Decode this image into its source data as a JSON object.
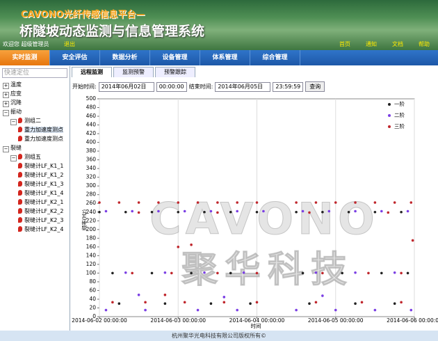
{
  "header": {
    "brand": "CAVONO光纤传感信息平台—",
    "title": "桥隧坡动态监测与信息管理系统",
    "user": "欢迎您 超级管理员",
    "logout": "退出",
    "links": [
      "首页",
      "通知",
      "文档",
      "帮助"
    ]
  },
  "nav": [
    "实时监测",
    "安全评估",
    "数据分析",
    "设备管理",
    "体系管理",
    "综合管理"
  ],
  "sidebar": {
    "search": "快速定位",
    "tree": [
      {
        "label": "温度"
      },
      {
        "label": "应变"
      },
      {
        "label": "沉降"
      },
      {
        "label": "振动",
        "children": [
          {
            "label": "测组二",
            "children": [
              {
                "label": "重力加速度测点"
              },
              {
                "label": "重力加速度测点"
              }
            ]
          }
        ]
      },
      {
        "label": "裂缝",
        "children": [
          {
            "label": "测组五",
            "children": [
              {
                "label": "裂缝计LF_K1_1"
              },
              {
                "label": "裂缝计LF_K1_2"
              },
              {
                "label": "裂缝计LF_K1_3"
              },
              {
                "label": "裂缝计LF_K1_4"
              },
              {
                "label": "裂缝计LF_K2_1"
              },
              {
                "label": "裂缝计LF_K2_2"
              },
              {
                "label": "裂缝计LF_K2_3"
              },
              {
                "label": "裂缝计LF_K2_4"
              }
            ]
          }
        ]
      }
    ]
  },
  "tabs": [
    "远程监测",
    "监测预警",
    "预警跟踪"
  ],
  "filter": {
    "start_label": "开始时间:",
    "start_date": "2014年06月02日",
    "start_time": "00:00:00",
    "end_label": "结束时间:",
    "end_date": "2014年06月05日",
    "end_time": "23:59:59",
    "query": "查询"
  },
  "watermark": [
    "CAVONO",
    "聚华科技"
  ],
  "footer": "杭州聚华光电科技有限公司版权所有©",
  "chart_data": {
    "type": "scatter",
    "ylabel": "频率(Hz)",
    "xlabel": "时间",
    "xlim": [
      "2014-06-02 00:00:00",
      "2014-06-06 00:00:00"
    ],
    "xticks": [
      "2014-06-02 00:00:00",
      "2014-06-03 00:00:00",
      "2014-06-04 00:00:00",
      "2014-06-05 00:00:00",
      "2014-06-06 00:00:00"
    ],
    "ylim": [
      0,
      500
    ],
    "yticks": [
      0,
      20,
      40,
      60,
      80,
      100,
      120,
      140,
      160,
      180,
      200,
      220,
      240,
      260,
      280,
      300,
      320,
      340,
      360,
      380,
      400,
      420,
      440,
      460,
      480,
      500
    ],
    "grid": "x",
    "legend": "top-right",
    "series": [
      {
        "name": "一阶",
        "color": "#222222",
        "x": [
          "2014-06-02 00:00:00",
          "2014-06-02 08:00:00",
          "2014-06-02 16:00:00",
          "2014-06-03 00:00:00",
          "2014-06-03 08:00:00",
          "2014-06-03 16:00:00",
          "2014-06-04 00:00:00",
          "2014-06-04 12:00:00",
          "2014-06-04 20:00:00",
          "2014-06-05 04:00:00",
          "2014-06-05 12:00:00",
          "2014-06-05 20:00:00",
          "2014-06-02 04:00:00",
          "2014-06-02 16:00:00",
          "2014-06-03 04:00:00",
          "2014-06-03 16:00:00",
          "2014-06-04 14:00:00",
          "2014-06-05 02:00:00",
          "2014-06-05 14:00:00",
          "2014-06-05 22:00:00",
          "2014-06-02 06:00:00",
          "2014-06-02 20:00:00",
          "2014-06-03 10:00:00",
          "2014-06-03 22:00:00",
          "2014-06-04 16:00:00",
          "2014-06-05 06:00:00",
          "2014-06-05 18:00:00"
        ],
        "values": [
          240,
          240,
          240,
          240,
          240,
          240,
          240,
          240,
          240,
          240,
          240,
          240,
          100,
          100,
          100,
          100,
          100,
          100,
          100,
          100,
          30,
          30,
          30,
          30,
          30,
          30,
          30
        ]
      },
      {
        "name": "二阶",
        "color": "#7b3fe4",
        "x": [
          "2014-06-02 02:00:00",
          "2014-06-02 10:00:00",
          "2014-06-02 18:00:00",
          "2014-06-03 02:00:00",
          "2014-06-03 10:00:00",
          "2014-06-03 18:00:00",
          "2014-06-04 02:00:00",
          "2014-06-04 14:00:00",
          "2014-06-04 22:00:00",
          "2014-06-05 06:00:00",
          "2014-06-05 14:00:00",
          "2014-06-05 22:00:00",
          "2014-06-02 08:00:00",
          "2014-06-02 20:00:00",
          "2014-06-03 08:00:00",
          "2014-06-03 20:00:00",
          "2014-06-04 18:00:00",
          "2014-06-05 06:00:00",
          "2014-06-05 18:00:00",
          "2014-06-02 02:00:00",
          "2014-06-02 14:00:00",
          "2014-06-03 06:00:00",
          "2014-06-03 18:00:00",
          "2014-06-04 12:00:00",
          "2014-06-05 00:00:00",
          "2014-06-05 12:00:00",
          "2014-06-05 23:00:00",
          "2014-06-02 12:00:00",
          "2014-06-03 14:00:00",
          "2014-06-04 20:00:00"
        ],
        "values": [
          242,
          242,
          242,
          242,
          242,
          242,
          242,
          242,
          242,
          242,
          242,
          242,
          101,
          101,
          101,
          101,
          101,
          101,
          101,
          15,
          15,
          15,
          15,
          15,
          15,
          15,
          15,
          50,
          45,
          48
        ]
      },
      {
        "name": "三阶",
        "color": "#c0272d",
        "x": [
          "2014-06-02 00:00:00",
          "2014-06-02 06:00:00",
          "2014-06-02 12:00:00",
          "2014-06-02 18:00:00",
          "2014-06-03 00:00:00",
          "2014-06-03 06:00:00",
          "2014-06-03 12:00:00",
          "2014-06-03 18:00:00",
          "2014-06-04 00:00:00",
          "2014-06-04 12:00:00",
          "2014-06-04 18:00:00",
          "2014-06-05 00:00:00",
          "2014-06-05 06:00:00",
          "2014-06-05 12:00:00",
          "2014-06-05 18:00:00",
          "2014-06-05 23:00:00",
          "2014-06-02 12:00:00",
          "2014-06-03 12:00:00",
          "2014-06-04 16:00:00",
          "2014-06-05 16:00:00",
          "2014-06-02 10:00:00",
          "2014-06-02 22:00:00",
          "2014-06-03 12:00:00",
          "2014-06-04 00:00:00",
          "2014-06-04 20:00:00",
          "2014-06-05 10:00:00",
          "2014-06-05 20:00:00",
          "2014-06-02 04:00:00",
          "2014-06-02 14:00:00",
          "2014-06-03 02:00:00",
          "2014-06-03 14:00:00",
          "2014-06-04 00:00:00",
          "2014-06-04 18:00:00",
          "2014-06-05 08:00:00",
          "2014-06-05 20:00:00",
          "2014-06-03 00:00:00",
          "2014-06-03 04:00:00",
          "2014-06-05 23:30:00",
          "2014-06-02 20:00:00"
        ],
        "values": [
          262,
          262,
          262,
          262,
          262,
          262,
          262,
          262,
          262,
          262,
          262,
          262,
          262,
          262,
          262,
          262,
          239,
          239,
          239,
          239,
          100,
          100,
          100,
          100,
          100,
          100,
          100,
          33,
          33,
          33,
          33,
          33,
          33,
          33,
          33,
          160,
          165,
          175,
          50
        ]
      }
    ]
  }
}
